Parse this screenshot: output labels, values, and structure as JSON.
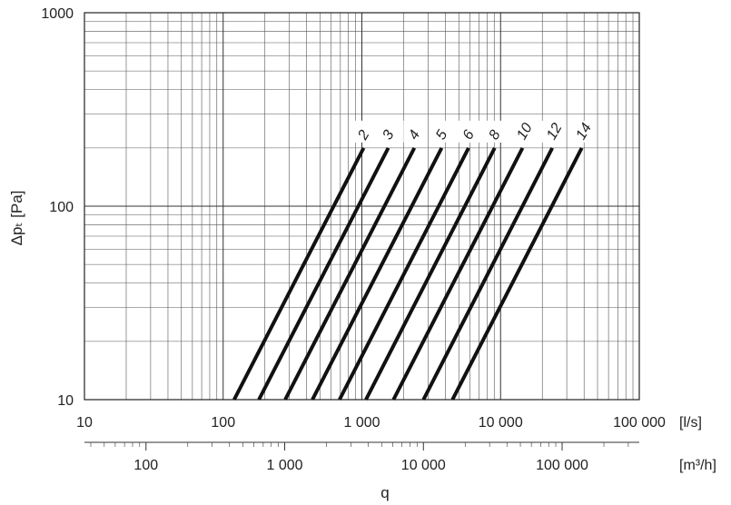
{
  "chart_data": {
    "type": "line",
    "x_scale": "log",
    "y_scale": "log",
    "xlabel": "q",
    "ylabel": "Δpₜ [Pa]",
    "x_unit_primary": "[l/s]",
    "x_unit_secondary": "[m³/h]",
    "xlim": [
      10,
      100000
    ],
    "ylim": [
      10,
      1000
    ],
    "grid": true,
    "x_ticks": [
      {
        "value": 10,
        "label": "10"
      },
      {
        "value": 100,
        "label": "100"
      },
      {
        "value": 1000,
        "label": "1 000"
      },
      {
        "value": 10000,
        "label": "10 000"
      },
      {
        "value": 100000,
        "label": "100 000"
      }
    ],
    "y_ticks": [
      {
        "value": 10,
        "label": "10"
      },
      {
        "value": 100,
        "label": "100"
      },
      {
        "value": 1000,
        "label": "1000"
      }
    ],
    "secondary_x_ticks": [
      {
        "value": 100,
        "label": "100"
      },
      {
        "value": 1000,
        "label": "1 000"
      },
      {
        "value": 10000,
        "label": "10 000"
      },
      {
        "value": 100000,
        "label": "100 000"
      }
    ],
    "series": [
      {
        "name": "2",
        "x": [
          120,
          1030
        ],
        "y": [
          10,
          200
        ]
      },
      {
        "name": "3",
        "x": [
          181,
          1550
        ],
        "y": [
          10,
          200
        ]
      },
      {
        "name": "4",
        "x": [
          280,
          2390
        ],
        "y": [
          10,
          200
        ]
      },
      {
        "name": "5",
        "x": [
          440,
          3760
        ],
        "y": [
          10,
          200
        ]
      },
      {
        "name": "6",
        "x": [
          690,
          5880
        ],
        "y": [
          10,
          200
        ]
      },
      {
        "name": "8",
        "x": [
          1070,
          9070
        ],
        "y": [
          10,
          200
        ]
      },
      {
        "name": "10",
        "x": [
          1690,
          14400
        ],
        "y": [
          10,
          200
        ]
      },
      {
        "name": "12",
        "x": [
          2780,
          23600
        ],
        "y": [
          10,
          200
        ]
      },
      {
        "name": "14",
        "x": [
          4500,
          38500
        ],
        "y": [
          10,
          200
        ]
      }
    ]
  }
}
